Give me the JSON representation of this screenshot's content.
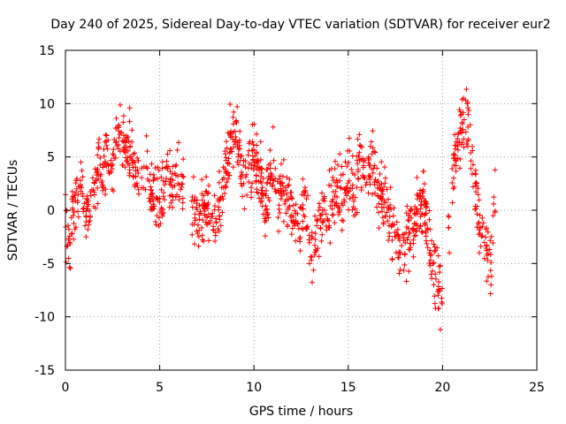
{
  "chart_data": {
    "type": "scatter",
    "title": "Day 240 of 2025, Sidereal Day-to-day VTEC variation (SDTVAR) for receiver eur2",
    "xlabel": "GPS time / hours",
    "ylabel": "SDTVAR / TECUs",
    "xlim": [
      0,
      25
    ],
    "ylim": [
      -15,
      15
    ],
    "xticks": [
      0,
      5,
      10,
      15,
      20,
      25
    ],
    "yticks": [
      -15,
      -10,
      -5,
      0,
      5,
      10,
      15
    ],
    "grid": true,
    "marker": "+",
    "color": "#ff0000",
    "series": [
      {
        "name": "SDTVAR eur2",
        "trend_x": [
          0.0,
          0.2,
          0.4,
          0.6,
          0.8,
          1.0,
          1.2,
          1.5,
          1.8,
          2.0,
          2.2,
          2.5,
          2.8,
          3.0,
          3.3,
          3.6,
          4.0,
          4.3,
          4.6,
          5.0,
          5.3,
          5.6,
          6.0,
          6.5,
          7.0,
          7.5,
          8.0,
          8.3,
          8.6,
          8.9,
          9.2,
          9.5,
          9.8,
          10.0,
          10.3,
          10.6,
          11.0,
          11.3,
          11.6,
          12.0,
          12.3,
          12.6,
          13.0,
          13.3,
          13.6,
          14.0,
          14.3,
          14.6,
          15.0,
          15.3,
          15.6,
          16.0,
          16.3,
          16.6,
          17.0,
          17.3,
          17.6,
          18.0,
          18.3,
          18.6,
          19.0,
          19.3,
          19.6,
          19.9,
          20.2,
          20.5,
          20.8,
          21.1,
          21.4,
          21.7,
          22.0,
          22.3,
          22.6,
          22.8
        ],
        "trend_y": [
          -1.5,
          -3.0,
          -0.5,
          0.5,
          2.0,
          -1.0,
          0.5,
          2.5,
          4.5,
          3.0,
          5.5,
          4.0,
          7.0,
          6.0,
          5.5,
          4.5,
          2.5,
          3.5,
          1.0,
          1.5,
          3.5,
          2.0,
          3.0,
          1.0,
          -0.5,
          0.5,
          -1.5,
          1.0,
          4.5,
          7.5,
          6.0,
          3.0,
          4.0,
          5.5,
          3.5,
          1.0,
          3.5,
          0.5,
          2.5,
          -0.5,
          -2.0,
          0.0,
          -3.0,
          -2.0,
          -0.5,
          0.5,
          2.5,
          1.5,
          3.5,
          2.0,
          5.0,
          3.0,
          4.5,
          2.0,
          0.5,
          -1.5,
          -2.5,
          -3.5,
          -2.0,
          -1.0,
          1.0,
          -3.5,
          -6.0,
          -7.5,
          -5.5,
          2.5,
          6.5,
          9.0,
          8.0,
          3.0,
          -1.5,
          -3.5,
          -5.5,
          1.5
        ],
        "spread": 2.2,
        "n_points": 1400
      }
    ]
  }
}
